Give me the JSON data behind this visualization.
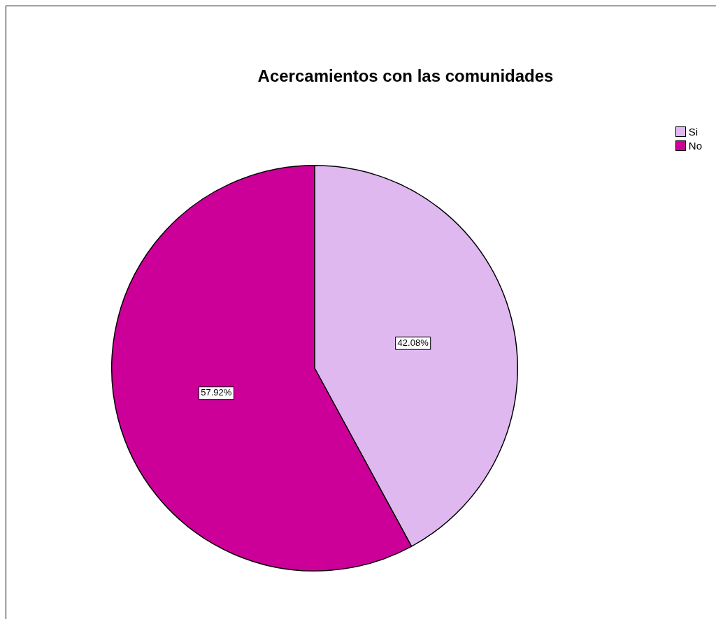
{
  "chart_data": {
    "type": "pie",
    "title": "Acercamientos con las comunidades",
    "categories": [
      "Si",
      "No"
    ],
    "values": [
      42.08,
      57.92
    ],
    "colors": [
      "#dfb8f0",
      "#cc0099"
    ],
    "value_labels": [
      "42.08%",
      "57.92%"
    ],
    "legend": "top right"
  }
}
